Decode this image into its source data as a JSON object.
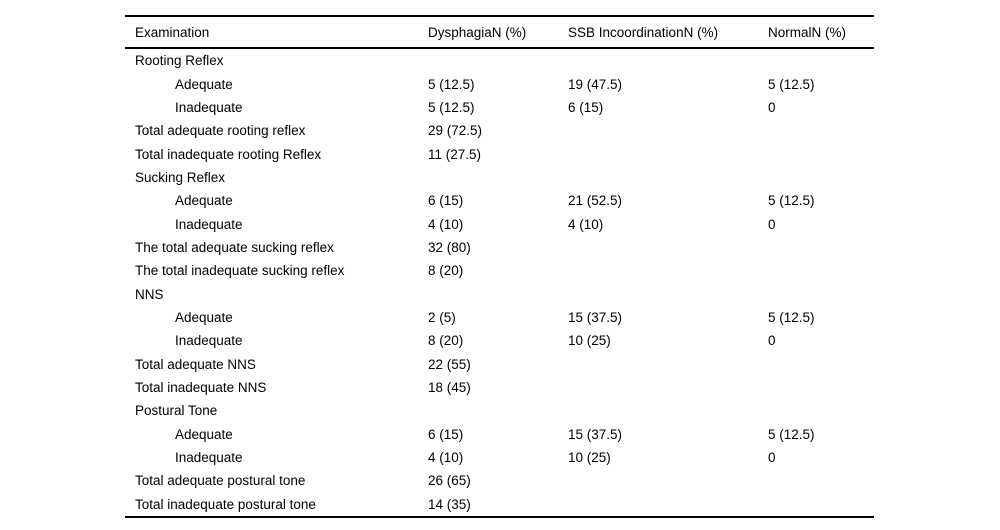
{
  "page": {
    "background_color": "#ffffff",
    "text_color": "#000000",
    "rule_color": "#000000"
  },
  "table": {
    "columns": [
      "Examination",
      "DysphagiaN (%)",
      "SSB IncoordinationN (%)",
      "NormalN (%)"
    ],
    "rows": [
      {
        "label": "Rooting Reflex",
        "indent": false,
        "values": [
          "",
          "",
          ""
        ]
      },
      {
        "label": "Adequate",
        "indent": true,
        "values": [
          "5 (12.5)",
          "19 (47.5)",
          "5 (12.5)"
        ]
      },
      {
        "label": "Inadequate",
        "indent": true,
        "values": [
          "5 (12.5)",
          "6 (15)",
          "0"
        ]
      },
      {
        "label": "Total adequate rooting reflex",
        "indent": false,
        "values": [
          "29 (72.5)",
          "",
          ""
        ]
      },
      {
        "label": "Total inadequate rooting Reflex",
        "indent": false,
        "values": [
          "11 (27.5)",
          "",
          ""
        ]
      },
      {
        "label": "Sucking Reflex",
        "indent": false,
        "values": [
          "",
          "",
          ""
        ]
      },
      {
        "label": "Adequate",
        "indent": true,
        "values": [
          "6 (15)",
          "21 (52.5)",
          "5 (12.5)"
        ]
      },
      {
        "label": "Inadequate",
        "indent": true,
        "values": [
          "4 (10)",
          "4 (10)",
          "0"
        ]
      },
      {
        "label": "The total adequate sucking reflex",
        "indent": false,
        "values": [
          "32 (80)",
          "",
          ""
        ]
      },
      {
        "label": "The total inadequate sucking reflex",
        "indent": false,
        "values": [
          "8 (20)",
          "",
          ""
        ]
      },
      {
        "label": "NNS",
        "indent": false,
        "values": [
          "",
          "",
          ""
        ]
      },
      {
        "label": "Adequate",
        "indent": true,
        "values": [
          "2 (5)",
          "15 (37.5)",
          "5 (12.5)"
        ]
      },
      {
        "label": "Inadequate",
        "indent": true,
        "values": [
          "8 (20)",
          "10 (25)",
          "0"
        ]
      },
      {
        "label": "Total adequate NNS",
        "indent": false,
        "values": [
          "22 (55)",
          "",
          ""
        ]
      },
      {
        "label": "Total inadequate NNS",
        "indent": false,
        "values": [
          "18 (45)",
          "",
          ""
        ]
      },
      {
        "label": "Postural Tone",
        "indent": false,
        "values": [
          "",
          "",
          ""
        ]
      },
      {
        "label": "Adequate",
        "indent": true,
        "values": [
          "6 (15)",
          "15 (37.5)",
          "5 (12.5)"
        ]
      },
      {
        "label": "Inadequate",
        "indent": true,
        "values": [
          "4 (10)",
          "10 (25)",
          "0"
        ]
      },
      {
        "label": "Total adequate postural tone",
        "indent": false,
        "values": [
          "26 (65)",
          "",
          ""
        ]
      },
      {
        "label": "Total inadequate postural tone",
        "indent": false,
        "values": [
          "14 (35)",
          "",
          ""
        ]
      }
    ]
  }
}
